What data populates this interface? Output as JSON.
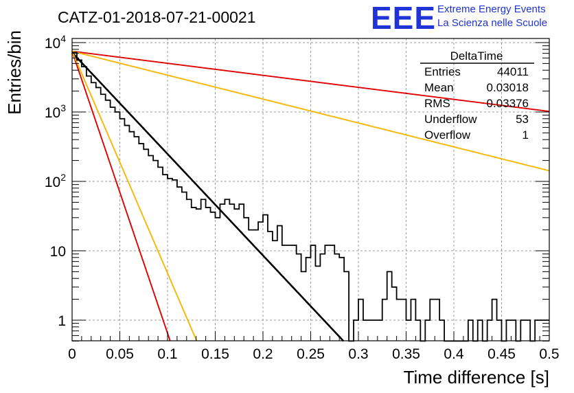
{
  "title": "CATZ-01-2018-07-21-00021",
  "logo": {
    "mark": "EEE",
    "line1": "Extreme Energy Events",
    "line2": "La Scienza nelle Scuole",
    "color": "#1f33d6"
  },
  "stats_box": {
    "name": "DeltaTime",
    "rows": [
      {
        "label": "Entries",
        "value": "44011"
      },
      {
        "label": "Mean",
        "value": "0.03018"
      },
      {
        "label": "RMS",
        "value": "0.03376"
      },
      {
        "label": "Underflow",
        "value": "53"
      },
      {
        "label": "Overflow",
        "value": "1"
      }
    ]
  },
  "chart_data": {
    "type": "line",
    "xlabel": "Time difference [s]",
    "ylabel": "Entries/bin",
    "xlim": [
      0,
      0.5
    ],
    "ylim": [
      0.5,
      14000
    ],
    "yscale": "log",
    "grid": true,
    "x_ticks": [
      "0",
      "0.05",
      "0.1",
      "0.15",
      "0.2",
      "0.25",
      "0.3",
      "0.35",
      "0.4",
      "0.45",
      "0.5"
    ],
    "y_ticks": [
      {
        "value": 1,
        "label": "1"
      },
      {
        "value": 10,
        "label": "10"
      },
      {
        "value": 100,
        "label": "10",
        "exp": "2"
      },
      {
        "value": 1000,
        "label": "10",
        "exp": "3"
      },
      {
        "value": 10000,
        "label": "10",
        "exp": "4"
      }
    ],
    "histogram": {
      "bin_width": 0.005,
      "color": "#000000",
      "values": [
        7200,
        5600,
        4500,
        3300,
        2650,
        2250,
        1800,
        1480,
        1170,
        1000,
        800,
        640,
        520,
        440,
        350,
        290,
        235,
        200,
        160,
        125,
        110,
        105,
        83,
        70,
        55,
        42,
        40,
        55,
        42,
        36,
        30,
        47,
        55,
        47,
        40,
        47,
        30,
        20,
        20,
        26,
        33,
        19,
        14,
        23,
        12,
        12,
        12,
        9,
        5,
        8,
        12,
        6,
        9,
        12,
        12,
        9,
        8,
        5,
        0,
        1,
        2,
        1,
        1,
        1,
        1,
        2,
        5,
        3,
        2,
        2,
        1,
        2,
        1,
        0,
        1,
        2,
        2,
        1,
        0,
        0,
        0,
        0,
        0,
        1,
        0,
        1,
        0,
        1,
        2,
        1,
        0,
        1,
        1,
        0,
        1,
        1,
        0,
        1,
        1,
        1
      ]
    },
    "series": [
      {
        "color": "#000000",
        "amplitude": 7200,
        "tau": 0.0297
      },
      {
        "color": "#e00000",
        "amplitude": 7500,
        "tau": 0.01069
      },
      {
        "color": "#e00000",
        "amplitude": 7500,
        "tau": 0.2506
      },
      {
        "color": "#f5b800",
        "amplitude": 7500,
        "tau": 0.01358
      },
      {
        "color": "#f5b800",
        "amplitude": 7500,
        "tau": 0.1261
      }
    ]
  }
}
